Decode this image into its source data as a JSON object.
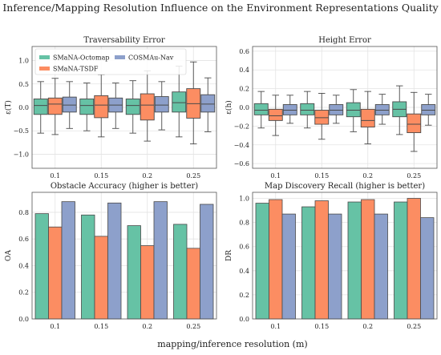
{
  "figure": {
    "title": "Inference/Mapping Resolution Influence on the Environment Representations Quality",
    "xlabel": "mapping/inference resolution (m)"
  },
  "legend": [
    {
      "label": "SMaNA-Octomap",
      "color": "#66c2a5"
    },
    {
      "label": "SMaNA-TSDF",
      "color": "#fc8d62"
    },
    {
      "label": "COSMAu-Nav",
      "color": "#8da0cb"
    }
  ],
  "chart_data": [
    {
      "type": "box",
      "title": "Traversability Error",
      "ylabel": "ε(T)",
      "categories": [
        "0.1",
        "0.15",
        "0.2",
        "0.25"
      ],
      "ylim": [
        -1.3,
        1.3
      ],
      "yticks": [
        -1.0,
        -0.5,
        0.0,
        0.5,
        1.0
      ],
      "ytick_labels": [
        "−1.0",
        "−0.5",
        "0.0",
        "0.5",
        "1.0"
      ],
      "grid": true,
      "legend": "top-left",
      "series": [
        {
          "name": "SMaNA-Octomap",
          "color": "#66c2a5",
          "boxes": [
            {
              "whislo": -0.55,
              "q1": -0.15,
              "med": 0.04,
              "q3": 0.18,
              "whishi": 0.55
            },
            {
              "whislo": -0.5,
              "q1": -0.15,
              "med": 0.04,
              "q3": 0.18,
              "whishi": 0.52
            },
            {
              "whislo": -0.55,
              "q1": -0.15,
              "med": 0.04,
              "q3": 0.18,
              "whishi": 0.57
            },
            {
              "whislo": -0.63,
              "q1": -0.1,
              "med": 0.1,
              "q3": 0.33,
              "whishi": 0.88
            }
          ]
        },
        {
          "name": "SMaNA-TSDF",
          "color": "#fc8d62",
          "boxes": [
            {
              "whislo": -0.58,
              "q1": -0.15,
              "med": 0.07,
              "q3": 0.2,
              "whishi": 0.62
            },
            {
              "whislo": -0.63,
              "q1": -0.22,
              "med": 0.05,
              "q3": 0.25,
              "whishi": 0.7
            },
            {
              "whislo": -0.72,
              "q1": -0.27,
              "med": 0.05,
              "q3": 0.29,
              "whishi": 0.78
            },
            {
              "whislo": -0.78,
              "q1": -0.23,
              "med": 0.08,
              "q3": 0.4,
              "whishi": 0.97
            }
          ]
        },
        {
          "name": "COSMAu-Nav",
          "color": "#8da0cb",
          "boxes": [
            {
              "whislo": -0.45,
              "q1": -0.1,
              "med": 0.05,
              "q3": 0.22,
              "whishi": 0.55
            },
            {
              "whislo": -0.45,
              "q1": -0.1,
              "med": 0.05,
              "q3": 0.2,
              "whishi": 0.52
            },
            {
              "whislo": -0.48,
              "q1": -0.1,
              "med": 0.05,
              "q3": 0.23,
              "whishi": 0.55
            },
            {
              "whislo": -0.52,
              "q1": -0.1,
              "med": 0.07,
              "q3": 0.27,
              "whishi": 0.63
            }
          ]
        }
      ]
    },
    {
      "type": "box",
      "title": "Height Error",
      "ylabel": "ε(h)",
      "categories": [
        "0.1",
        "0.15",
        "0.2",
        "0.25"
      ],
      "ylim": [
        -0.65,
        0.65
      ],
      "yticks": [
        -0.6,
        -0.4,
        -0.2,
        0.0,
        0.2,
        0.4,
        0.6
      ],
      "ytick_labels": [
        "−0.6",
        "−0.4",
        "−0.2",
        "0.0",
        "0.2",
        "0.4",
        "0.6"
      ],
      "grid": true,
      "series": [
        {
          "name": "SMaNA-Octomap",
          "color": "#66c2a5",
          "boxes": [
            {
              "whislo": -0.22,
              "q1": -0.08,
              "med": -0.03,
              "q3": 0.04,
              "whishi": 0.17
            },
            {
              "whislo": -0.22,
              "q1": -0.08,
              "med": -0.03,
              "q3": 0.04,
              "whishi": 0.17
            },
            {
              "whislo": -0.26,
              "q1": -0.1,
              "med": -0.03,
              "q3": 0.05,
              "whishi": 0.19
            },
            {
              "whislo": -0.29,
              "q1": -0.1,
              "med": -0.02,
              "q3": 0.06,
              "whishi": 0.23
            }
          ]
        },
        {
          "name": "SMaNA-TSDF",
          "color": "#fc8d62",
          "boxes": [
            {
              "whislo": -0.3,
              "q1": -0.14,
              "med": -0.09,
              "q3": -0.02,
              "whishi": 0.13
            },
            {
              "whislo": -0.34,
              "q1": -0.18,
              "med": -0.11,
              "q3": -0.03,
              "whishi": 0.15
            },
            {
              "whislo": -0.39,
              "q1": -0.21,
              "med": -0.14,
              "q3": -0.02,
              "whishi": 0.17
            },
            {
              "whislo": -0.47,
              "q1": -0.27,
              "med": -0.18,
              "q3": -0.07,
              "whishi": 0.16
            }
          ]
        },
        {
          "name": "COSMAu-Nav",
          "color": "#8da0cb",
          "boxes": [
            {
              "whislo": -0.17,
              "q1": -0.08,
              "med": -0.03,
              "q3": 0.03,
              "whishi": 0.13
            },
            {
              "whislo": -0.17,
              "q1": -0.08,
              "med": -0.03,
              "q3": 0.03,
              "whishi": 0.13
            },
            {
              "whislo": -0.18,
              "q1": -0.08,
              "med": -0.03,
              "q3": 0.03,
              "whishi": 0.14
            },
            {
              "whislo": -0.19,
              "q1": -0.08,
              "med": -0.03,
              "q3": 0.03,
              "whishi": 0.14
            }
          ]
        }
      ]
    },
    {
      "type": "bar",
      "title": "Obstacle Accuracy (higher is better)",
      "ylabel": "OA",
      "categories": [
        "0.1",
        "0.15",
        "0.2",
        "0.25"
      ],
      "ylim": [
        0,
        0.95
      ],
      "yticks": [
        0,
        0.2,
        0.4,
        0.6,
        0.8
      ],
      "ytick_labels": [
        "0.0",
        "0.2",
        "0.4",
        "0.6",
        "0.8"
      ],
      "grid": true,
      "series": [
        {
          "name": "SMaNA-Octomap",
          "color": "#66c2a5",
          "values": [
            0.79,
            0.78,
            0.7,
            0.71
          ]
        },
        {
          "name": "SMaNA-TSDF",
          "color": "#fc8d62",
          "values": [
            0.69,
            0.62,
            0.55,
            0.53
          ]
        },
        {
          "name": "COSMAu-Nav",
          "color": "#8da0cb",
          "values": [
            0.88,
            0.87,
            0.88,
            0.86
          ]
        }
      ]
    },
    {
      "type": "bar",
      "title": "Map Discovery Recall (higher is better)",
      "ylabel": "DR",
      "categories": [
        "0.1",
        "0.15",
        "0.2",
        "0.25"
      ],
      "ylim": [
        0,
        1.05
      ],
      "yticks": [
        0,
        0.2,
        0.4,
        0.6,
        0.8,
        1.0
      ],
      "ytick_labels": [
        "0.0",
        "0.2",
        "0.4",
        "0.6",
        "0.8",
        "1.0"
      ],
      "grid": true,
      "series": [
        {
          "name": "SMaNA-Octomap",
          "color": "#66c2a5",
          "values": [
            0.96,
            0.93,
            0.97,
            0.97
          ]
        },
        {
          "name": "SMaNA-TSDF",
          "color": "#fc8d62",
          "values": [
            0.99,
            0.98,
            0.99,
            1.0
          ]
        },
        {
          "name": "COSMAu-Nav",
          "color": "#8da0cb",
          "values": [
            0.87,
            0.87,
            0.87,
            0.84
          ]
        }
      ]
    }
  ]
}
